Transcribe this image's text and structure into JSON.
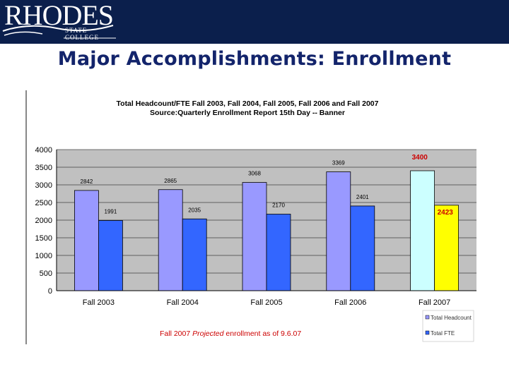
{
  "header": {
    "logo_name": "RHODES",
    "logo_subtitle": "STATE COLLEGE",
    "slide_title": "Major Accomplishments: Enrollment"
  },
  "chart_data": {
    "type": "bar",
    "title": "Total Headcount/FTE  Fall 2003, Fall 2004, Fall 2005, Fall 2006 and Fall 2007",
    "subtitle": "Source:Quarterly Enrollment Report 15th Day -- Banner",
    "categories": [
      "Fall 2003",
      "Fall 2004",
      "Fall 2005",
      "Fall 2006",
      "Fall 2007"
    ],
    "series": [
      {
        "name": "Total Headcount",
        "values": [
          2842,
          2865,
          3068,
          3369,
          3400
        ],
        "labels": [
          "2842",
          "2865",
          "3068",
          "3369",
          "3400"
        ],
        "color": "#9999ff",
        "highlight_last_color": "#ccffff"
      },
      {
        "name": "Total FTE",
        "values": [
          1991,
          2035,
          2170,
          2401,
          2423
        ],
        "labels": [
          "1991",
          "2035",
          "2170",
          "2401",
          "2423"
        ],
        "color": "#3366ff",
        "highlight_last_color": "#ffff00"
      }
    ],
    "ylim": [
      0,
      4000
    ],
    "yticks": [
      0,
      500,
      1000,
      1500,
      2000,
      2500,
      3000,
      3500,
      4000
    ],
    "grid": true,
    "legend": "bottom-right",
    "plot_background": "#c0c0c0",
    "highlight_label_color": "#cc0000",
    "footnote_before": "Fall 2007 ",
    "footnote_italic": "Projected",
    "footnote_after": " enrollment as of 9.6.07",
    "footnote_color": "#cc0000"
  }
}
